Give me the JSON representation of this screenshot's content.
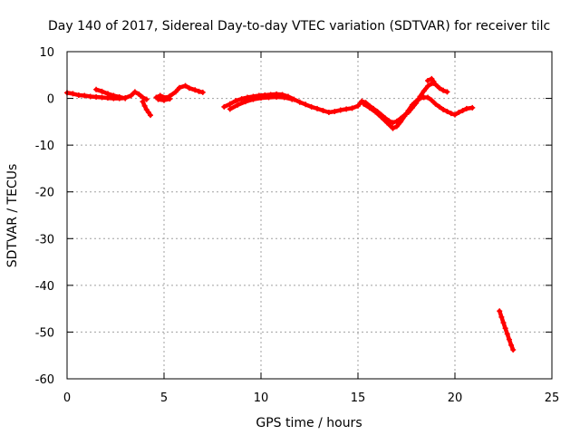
{
  "chart_data": {
    "type": "scatter",
    "title": "Day 140 of 2017, Sidereal Day-to-day VTEC variation (SDTVAR) for receiver tilc",
    "xlabel": "GPS time / hours",
    "ylabel": "SDTVAR / TECUs",
    "xlim": [
      0,
      25
    ],
    "ylim": [
      -60,
      10
    ],
    "xticks": [
      0,
      5,
      10,
      15,
      20,
      25
    ],
    "yticks": [
      10,
      0,
      -10,
      -20,
      -30,
      -40,
      -50,
      -60
    ],
    "grid": true,
    "series": [
      {
        "name": "SDTVAR",
        "color": "#ff0000",
        "segments": [
          [
            [
              0.0,
              1.2
            ],
            [
              0.3,
              1.0
            ],
            [
              0.6,
              0.7
            ],
            [
              0.9,
              0.6
            ],
            [
              1.2,
              0.4
            ],
            [
              1.5,
              0.3
            ],
            [
              1.8,
              0.2
            ],
            [
              2.1,
              0.1
            ],
            [
              2.4,
              0.0
            ],
            [
              2.7,
              0.0
            ],
            [
              3.0,
              0.1
            ],
            [
              3.3,
              0.6
            ],
            [
              3.5,
              1.4
            ],
            [
              3.7,
              0.9
            ],
            [
              3.9,
              0.2
            ],
            [
              4.1,
              -0.2
            ]
          ],
          [
            [
              1.5,
              1.9
            ],
            [
              1.8,
              1.5
            ],
            [
              2.1,
              1.0
            ],
            [
              2.4,
              0.6
            ],
            [
              2.7,
              0.3
            ],
            [
              3.0,
              0.0
            ]
          ],
          [
            [
              3.9,
              -0.7
            ],
            [
              4.0,
              -1.6
            ],
            [
              4.1,
              -2.4
            ],
            [
              4.2,
              -3.0
            ],
            [
              4.3,
              -3.6
            ]
          ],
          [
            [
              4.6,
              0.2
            ],
            [
              4.8,
              0.6
            ],
            [
              5.1,
              0.1
            ],
            [
              5.3,
              0.5
            ],
            [
              5.6,
              1.4
            ],
            [
              5.8,
              2.3
            ],
            [
              6.1,
              2.7
            ],
            [
              6.3,
              2.2
            ],
            [
              6.6,
              1.8
            ],
            [
              6.8,
              1.5
            ],
            [
              7.0,
              1.3
            ]
          ],
          [
            [
              4.7,
              -0.2
            ],
            [
              5.0,
              -0.4
            ],
            [
              5.3,
              -0.1
            ]
          ],
          [
            [
              8.1,
              -1.8
            ],
            [
              8.4,
              -1.2
            ],
            [
              8.7,
              -0.5
            ],
            [
              9.0,
              -0.1
            ],
            [
              9.3,
              0.2
            ],
            [
              9.6,
              0.4
            ],
            [
              9.9,
              0.6
            ],
            [
              10.2,
              0.7
            ],
            [
              10.5,
              0.8
            ],
            [
              10.8,
              0.9
            ],
            [
              11.1,
              0.8
            ],
            [
              11.4,
              0.4
            ],
            [
              11.7,
              -0.2
            ],
            [
              12.0,
              -0.8
            ],
            [
              12.3,
              -1.3
            ],
            [
              12.6,
              -1.8
            ],
            [
              12.9,
              -2.2
            ],
            [
              13.2,
              -2.6
            ],
            [
              13.5,
              -3.0
            ],
            [
              13.8,
              -2.8
            ],
            [
              14.1,
              -2.5
            ],
            [
              14.4,
              -2.3
            ],
            [
              14.7,
              -2.1
            ],
            [
              15.0,
              -1.6
            ],
            [
              15.2,
              -0.6
            ],
            [
              15.4,
              -0.9
            ],
            [
              15.6,
              -1.6
            ],
            [
              15.8,
              -2.2
            ],
            [
              16.0,
              -2.8
            ],
            [
              16.2,
              -3.5
            ],
            [
              16.4,
              -4.2
            ],
            [
              16.6,
              -4.8
            ],
            [
              16.8,
              -5.2
            ],
            [
              17.0,
              -4.9
            ],
            [
              17.2,
              -4.3
            ],
            [
              17.4,
              -3.6
            ],
            [
              17.6,
              -3.0
            ],
            [
              17.8,
              -2.0
            ],
            [
              18.0,
              -1.0
            ],
            [
              18.2,
              0.4
            ],
            [
              18.4,
              1.6
            ],
            [
              18.6,
              2.6
            ],
            [
              18.8,
              3.2
            ],
            [
              19.0,
              3.0
            ],
            [
              19.2,
              2.2
            ],
            [
              19.4,
              1.7
            ],
            [
              19.6,
              1.4
            ]
          ],
          [
            [
              8.4,
              -2.3
            ],
            [
              8.8,
              -1.4
            ],
            [
              9.2,
              -0.7
            ],
            [
              9.6,
              -0.2
            ],
            [
              10.0,
              0.1
            ],
            [
              10.4,
              0.2
            ],
            [
              10.8,
              0.3
            ],
            [
              11.2,
              0.2
            ],
            [
              11.6,
              -0.2
            ]
          ],
          [
            [
              15.3,
              -1.2
            ],
            [
              15.6,
              -2.0
            ],
            [
              15.9,
              -2.9
            ],
            [
              16.2,
              -4.0
            ],
            [
              16.5,
              -5.2
            ],
            [
              16.8,
              -6.4
            ],
            [
              17.0,
              -6.0
            ],
            [
              17.2,
              -5.0
            ],
            [
              17.4,
              -3.8
            ],
            [
              17.6,
              -2.6
            ],
            [
              17.8,
              -1.4
            ],
            [
              18.0,
              -0.6
            ],
            [
              18.2,
              0.0
            ],
            [
              18.4,
              0.2
            ],
            [
              18.6,
              0.2
            ],
            [
              18.8,
              -0.4
            ],
            [
              19.0,
              -1.2
            ],
            [
              19.2,
              -1.8
            ],
            [
              19.4,
              -2.4
            ],
            [
              19.6,
              -2.8
            ],
            [
              19.8,
              -3.2
            ],
            [
              20.0,
              -3.5
            ],
            [
              20.2,
              -3.0
            ],
            [
              20.4,
              -2.6
            ],
            [
              20.6,
              -2.2
            ],
            [
              20.9,
              -2.0
            ]
          ],
          [
            [
              18.6,
              3.8
            ],
            [
              18.8,
              4.2
            ],
            [
              18.9,
              3.6
            ]
          ],
          [
            [
              22.3,
              -45.5
            ],
            [
              22.4,
              -46.8
            ],
            [
              22.5,
              -48.0
            ],
            [
              22.6,
              -49.2
            ],
            [
              22.7,
              -50.4
            ],
            [
              22.8,
              -51.6
            ],
            [
              22.9,
              -52.8
            ],
            [
              23.0,
              -53.8
            ]
          ]
        ]
      }
    ]
  }
}
